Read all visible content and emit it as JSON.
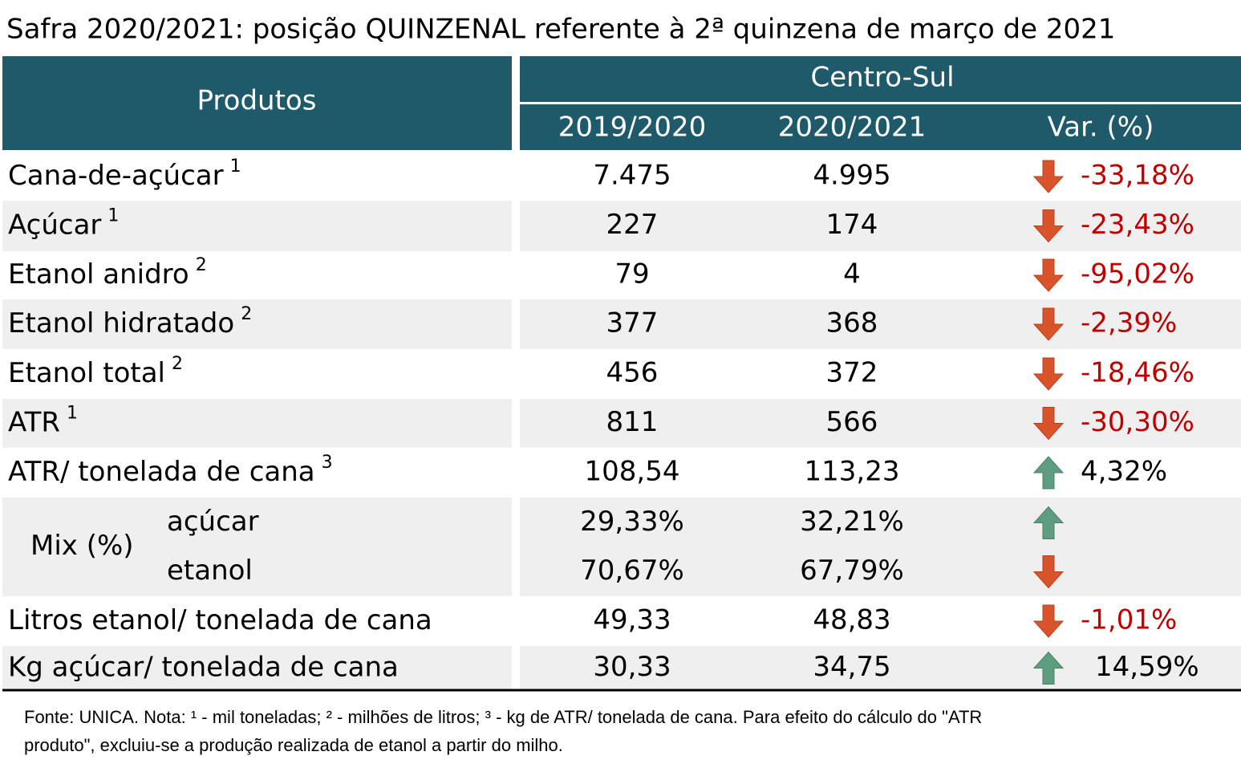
{
  "title": "Safra 2020/2021: posição QUINZENAL referente à 2ª quinzena de março de 2021",
  "table": {
    "header": {
      "products": "Produtos",
      "region": "Centro-Sul",
      "columns": [
        "2019/2020",
        "2020/2021",
        "Var. (%)"
      ]
    },
    "rows": [
      {
        "label": "Cana-de-açúcar",
        "note": "1",
        "values": [
          "7.475",
          "4.995",
          "-33,18%"
        ]
      },
      {
        "label": "Açúcar",
        "note": "1",
        "values": [
          "227",
          "174",
          "-23,43%"
        ]
      },
      {
        "label": "Etanol anidro",
        "note": "2",
        "values": [
          "79",
          "4",
          "-95,02%"
        ]
      },
      {
        "label": "Etanol hidratado",
        "note": "2",
        "values": [
          "377",
          "368",
          "-2,39%"
        ]
      },
      {
        "label": "Etanol total",
        "note": "2",
        "values": [
          "456",
          "372",
          "-18,46%"
        ]
      },
      {
        "label": "ATR",
        "note": "1",
        "values": [
          "811",
          "566",
          "-30,30%"
        ]
      },
      {
        "label": "ATR/ tonelada de cana",
        "note": "3",
        "values": [
          "108,54",
          "113,23",
          "4,32%"
        ]
      },
      {
        "label": "Mix (%)",
        "parts": [
          {
            "label": "açúcar",
            "values": [
              "29,33%",
              "32,21%"
            ]
          },
          {
            "label": "etanol",
            "values": [
              "70,67%",
              "67,79%"
            ]
          }
        ]
      },
      {
        "label": "Litros etanol/ tonelada de cana",
        "values": [
          "49,33",
          "48,83",
          "-1,01%"
        ]
      },
      {
        "label": "Kg açúcar/ tonelada de cana",
        "values": [
          "30,33",
          "34,75",
          "14,59%"
        ]
      }
    ]
  },
  "footnote": [
    "Fonte: UNICA. Nota: ¹ - mil toneladas; ² - milhões de litros; ³ - kg de ATR/ tonelada de cana. Para efeito do cálculo do \"ATR",
    "produto\", excluiu-se a produção realizada de etanol a partir do milho."
  ]
}
